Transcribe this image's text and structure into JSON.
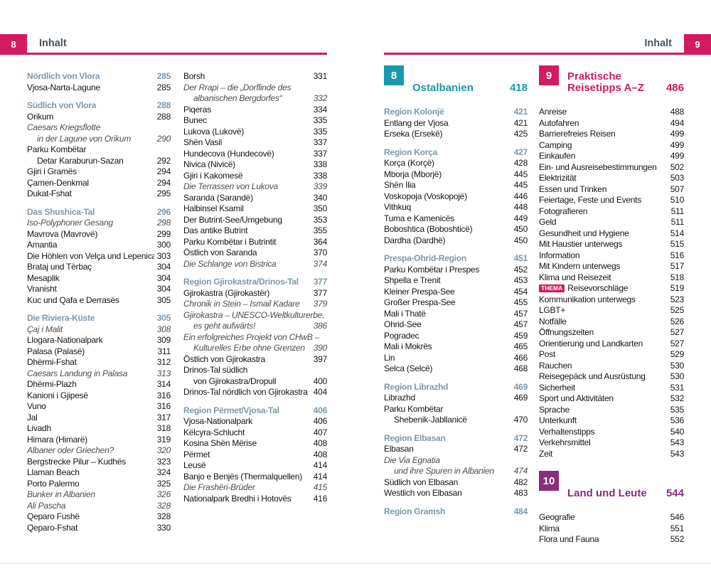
{
  "left_header": {
    "page_number": "8",
    "title": "Inhalt"
  },
  "right_header": {
    "page_number": "9",
    "title": "Inhalt"
  },
  "colors": {
    "accent_pink": "#d31a63",
    "accent_teal": "#189aab",
    "accent_purple": "#8b2d7a",
    "section_heading_slate": "#7d98a9"
  },
  "columns": [
    {
      "blocks": [
        {
          "type": "entries",
          "items": [
            {
              "s": "h",
              "t": "Nördlich von Vlora",
              "p": "285"
            },
            {
              "s": "n",
              "t": "Vjosa-Narta-Lagune",
              "p": "285"
            },
            {
              "s": "sp"
            },
            {
              "s": "h",
              "t": "Südlich von Vlora",
              "p": "288"
            },
            {
              "s": "n",
              "t": "Orikum",
              "p": "288"
            },
            {
              "s": "i",
              "t": "Caesars Kriegsflotte",
              "p": ""
            },
            {
              "s": "ii",
              "t": "in der Lagune von Orikum",
              "p": "290"
            },
            {
              "s": "n",
              "t": "Parku Kombëtar",
              "p": ""
            },
            {
              "s": "ni",
              "t": "Detar Karaburun-Sazan",
              "p": "292"
            },
            {
              "s": "n",
              "t": "Gjiri i Gramës",
              "p": "294"
            },
            {
              "s": "n",
              "t": "Çamen-Denkmal",
              "p": "294"
            },
            {
              "s": "n",
              "t": "Dukat-Fshat",
              "p": "295"
            },
            {
              "s": "sp"
            },
            {
              "s": "h",
              "t": "Das Shushica-Tal",
              "p": "296"
            },
            {
              "s": "i",
              "t": "Iso-Polyphoner Gesang",
              "p": "298"
            },
            {
              "s": "n",
              "t": "Mavrova (Mavrovë)",
              "p": "299"
            },
            {
              "s": "n",
              "t": "Amantia",
              "p": "300"
            },
            {
              "s": "n",
              "t": "Die Höhlen von Velça und Lepenica",
              "p": "303"
            },
            {
              "s": "n",
              "t": "Brataj und Tërbaç",
              "p": "304"
            },
            {
              "s": "n",
              "t": "Mesaplik",
              "p": "304"
            },
            {
              "s": "n",
              "t": "Vranisht",
              "p": "304"
            },
            {
              "s": "n",
              "t": "Kuc und Qafa e Derrasës",
              "p": "305"
            },
            {
              "s": "sp"
            },
            {
              "s": "h",
              "t": "Die Riviera-Küste",
              "p": "305"
            },
            {
              "s": "i",
              "t": "Çaj i Malit",
              "p": "308"
            },
            {
              "s": "n",
              "t": "Llogara-Nationalpark",
              "p": "309"
            },
            {
              "s": "n",
              "t": "Palasa (Palasë)",
              "p": "311"
            },
            {
              "s": "n",
              "t": "Dhërmi-Fshat",
              "p": "312"
            },
            {
              "s": "i",
              "t": "Caesars Landung in Palasa",
              "p": "313"
            },
            {
              "s": "n",
              "t": "Dhërmi-Plazh",
              "p": "314"
            },
            {
              "s": "n",
              "t": "Kanioni i Gjipesë",
              "p": "316"
            },
            {
              "s": "n",
              "t": "Vuno",
              "p": "316"
            },
            {
              "s": "n",
              "t": "Jal",
              "p": "317"
            },
            {
              "s": "n",
              "t": "Livadh",
              "p": "318"
            },
            {
              "s": "n",
              "t": "Himara (Himarë)",
              "p": "319"
            },
            {
              "s": "i",
              "t": "Albaner oder Griechen?",
              "p": "320"
            },
            {
              "s": "n",
              "t": "Bergstrecke Pilur – Kudhës",
              "p": "323"
            },
            {
              "s": "n",
              "t": "Llaman Beach",
              "p": "324"
            },
            {
              "s": "n",
              "t": "Porto Palermo",
              "p": "325"
            },
            {
              "s": "i",
              "t": "Bunker in Albanien",
              "p": "326"
            },
            {
              "s": "i",
              "t": "Ali Pascha",
              "p": "328"
            },
            {
              "s": "n",
              "t": "Qeparo Fushë",
              "p": "328"
            },
            {
              "s": "n",
              "t": "Qeparo-Fshat",
              "p": "330"
            }
          ]
        }
      ]
    },
    {
      "blocks": [
        {
          "type": "entries",
          "items": [
            {
              "s": "n",
              "t": "Borsh",
              "p": "331"
            },
            {
              "s": "i",
              "t": "Der Rrapi – die „Dorflinde des",
              "p": ""
            },
            {
              "s": "ii",
              "t": "albanischen Bergdorfes“",
              "p": "332"
            },
            {
              "s": "n",
              "t": "Piqeras",
              "p": "334"
            },
            {
              "s": "n",
              "t": "Bunec",
              "p": "335"
            },
            {
              "s": "n",
              "t": "Lukova (Lukovë)",
              "p": "335"
            },
            {
              "s": "n",
              "t": "Shën Vasil",
              "p": "337"
            },
            {
              "s": "n",
              "t": "Hundecova (Hundecovë)",
              "p": "337"
            },
            {
              "s": "n",
              "t": "Nivica (Nivicë)",
              "p": "338"
            },
            {
              "s": "n",
              "t": "Gjiri i Kakomesë",
              "p": "338"
            },
            {
              "s": "i",
              "t": "Die Terrassen von Lukova",
              "p": "339"
            },
            {
              "s": "n",
              "t": "Saranda (Sarandë)",
              "p": "340"
            },
            {
              "s": "n",
              "t": "Halbinsel Ksamil",
              "p": "350"
            },
            {
              "s": "n",
              "t": "Der Butrint-See/Umgebung",
              "p": "353"
            },
            {
              "s": "n",
              "t": "Das antike Butrint",
              "p": "355"
            },
            {
              "s": "n",
              "t": "Parku Kombëtar i Butrintit",
              "p": "364"
            },
            {
              "s": "n",
              "t": "Östlich von Saranda",
              "p": "370"
            },
            {
              "s": "i",
              "t": "Die Schlange von Bistrica",
              "p": "374"
            },
            {
              "s": "sp"
            },
            {
              "s": "h",
              "t": "Region Gjirokastra/Drinos-Tal",
              "p": "377"
            },
            {
              "s": "n",
              "t": "Gjirokastra (Gjirokastër)",
              "p": "377"
            },
            {
              "s": "i",
              "t": "Chronik in Stein – Ismail Kadare",
              "p": "379"
            },
            {
              "s": "i",
              "t": "Gjirokastra – UNESCO-Weltkulturerbe,",
              "p": ""
            },
            {
              "s": "ii",
              "t": "es geht aufwärts!",
              "p": "386"
            },
            {
              "s": "i",
              "t": "Ein erfolgreiches Projekt von CHwB –",
              "p": ""
            },
            {
              "s": "ii",
              "t": "Kulturelles Erbe ohne Grenzen",
              "p": "390"
            },
            {
              "s": "n",
              "t": "Östlich von Gjirokastra",
              "p": "397"
            },
            {
              "s": "n",
              "t": "Drinos-Tal südlich",
              "p": ""
            },
            {
              "s": "ni",
              "t": "von Gjirokastra/Dropull",
              "p": "400"
            },
            {
              "s": "n",
              "t": "Drinos-Tal nördlich von Gjirokastra",
              "p": "404"
            },
            {
              "s": "sp"
            },
            {
              "s": "h",
              "t": "Region Përmet/Vjosa-Tal",
              "p": "406"
            },
            {
              "s": "n",
              "t": "Vjosa-Nationalpark",
              "p": "406"
            },
            {
              "s": "n",
              "t": "Këlcyra-Schlucht",
              "p": "407"
            },
            {
              "s": "n",
              "t": "Kosina Shën Mërise",
              "p": "408"
            },
            {
              "s": "n",
              "t": "Përmet",
              "p": "408"
            },
            {
              "s": "n",
              "t": "Leusë",
              "p": "414"
            },
            {
              "s": "n",
              "t": "Banjo e Benjës (Thermalquellen)",
              "p": "414"
            },
            {
              "s": "i",
              "t": "Die Frashëri-Brüder",
              "p": "415"
            },
            {
              "s": "n",
              "t": "Nationalpark Bredhi i Hotovës",
              "p": "416"
            }
          ]
        }
      ]
    },
    {
      "blocks": [
        {
          "type": "chapter",
          "num": "8",
          "title_lines": [
            "Ostalbanien"
          ],
          "page": "418",
          "color": "teal"
        },
        {
          "type": "entries",
          "items": [
            {
              "s": "h",
              "t": "Region Kolonjë",
              "p": "421"
            },
            {
              "s": "n",
              "t": "Entlang der Vjosa",
              "p": "421"
            },
            {
              "s": "n",
              "t": "Erseka (Ersekë)",
              "p": "425"
            },
            {
              "s": "sp"
            },
            {
              "s": "h",
              "t": "Region Korça",
              "p": "427"
            },
            {
              "s": "n",
              "t": "Korça (Korçë)",
              "p": "428"
            },
            {
              "s": "n",
              "t": "Mborja (Mborjë)",
              "p": "445"
            },
            {
              "s": "n",
              "t": "Shën Ilia",
              "p": "445"
            },
            {
              "s": "n",
              "t": "Voskopoja (Voskopojë)",
              "p": "446"
            },
            {
              "s": "n",
              "t": "Vithkuq",
              "p": "448"
            },
            {
              "s": "n",
              "t": "Tuma e Kamenicës",
              "p": "449"
            },
            {
              "s": "n",
              "t": "Boboshtica (Boboshticë)",
              "p": "450"
            },
            {
              "s": "n",
              "t": "Dardha (Dardhë)",
              "p": "450"
            },
            {
              "s": "sp"
            },
            {
              "s": "h",
              "t": "Prespa-Ohrid-Region",
              "p": "451"
            },
            {
              "s": "n",
              "t": "Parku Kombëtar i Prespes",
              "p": "452"
            },
            {
              "s": "n",
              "t": "Shpella e Trenit",
              "p": "453"
            },
            {
              "s": "n",
              "t": "Kleiner Prespa-See",
              "p": "454"
            },
            {
              "s": "n",
              "t": "Großer Prespa-See",
              "p": "455"
            },
            {
              "s": "n",
              "t": "Mali i Thatë",
              "p": "457"
            },
            {
              "s": "n",
              "t": "Ohrid-See",
              "p": "457"
            },
            {
              "s": "n",
              "t": "Pogradec",
              "p": "459"
            },
            {
              "s": "n",
              "t": "Mali i Mokrës",
              "p": "465"
            },
            {
              "s": "n",
              "t": "Lin",
              "p": "466"
            },
            {
              "s": "n",
              "t": "Selca (Selcë)",
              "p": "468"
            },
            {
              "s": "sp"
            },
            {
              "s": "h",
              "t": "Region Librazhd",
              "p": "469"
            },
            {
              "s": "n",
              "t": "Librazhd",
              "p": "469"
            },
            {
              "s": "n",
              "t": "Parku Kombëtar",
              "p": ""
            },
            {
              "s": "ni",
              "t": "Shebenik-Jabllanicë",
              "p": "470"
            },
            {
              "s": "sp"
            },
            {
              "s": "h",
              "t": "Region Elbasan",
              "p": "472"
            },
            {
              "s": "n",
              "t": "Elbasan",
              "p": "472"
            },
            {
              "s": "i",
              "t": "Die Via Egnatia",
              "p": ""
            },
            {
              "s": "ii",
              "t": "und ihre Spuren in Albanien",
              "p": "474"
            },
            {
              "s": "n",
              "t": "Südlich von Elbasan",
              "p": "482"
            },
            {
              "s": "n",
              "t": "Westlich von Elbasan",
              "p": "483"
            },
            {
              "s": "sp"
            },
            {
              "s": "h",
              "t": "Region Gramsh",
              "p": "484"
            }
          ]
        }
      ]
    },
    {
      "blocks": [
        {
          "type": "chapter",
          "num": "9",
          "title_lines": [
            "Praktische",
            "Reisetipps A–Z"
          ],
          "page": "486",
          "color": "pink"
        },
        {
          "type": "entries",
          "items": [
            {
              "s": "n",
              "t": "Anreise",
              "p": "488"
            },
            {
              "s": "n",
              "t": "Autofahren",
              "p": "494"
            },
            {
              "s": "n",
              "t": "Barrierefreies Reisen",
              "p": "499"
            },
            {
              "s": "n",
              "t": "Camping",
              "p": "499"
            },
            {
              "s": "n",
              "t": "Einkaufen",
              "p": "499"
            },
            {
              "s": "n",
              "t": "Ein- und Ausreisebestimmungen",
              "p": "502"
            },
            {
              "s": "n",
              "t": "Elektrizität",
              "p": "503"
            },
            {
              "s": "n",
              "t": "Essen und Trinken",
              "p": "507"
            },
            {
              "s": "n",
              "t": "Feiertage, Feste und Events",
              "p": "510"
            },
            {
              "s": "n",
              "t": "Fotografieren",
              "p": "511"
            },
            {
              "s": "n",
              "t": "Geld",
              "p": "511"
            },
            {
              "s": "n",
              "t": "Gesundheit und Hygiene",
              "p": "514"
            },
            {
              "s": "n",
              "t": "Mit Haustier unterwegs",
              "p": "515"
            },
            {
              "s": "n",
              "t": "Information",
              "p": "516"
            },
            {
              "s": "n",
              "t": "Mit Kindern unterwegs",
              "p": "517"
            },
            {
              "s": "n",
              "t": "Klima und Reisezeit",
              "p": "518"
            },
            {
              "s": "n",
              "t": "Reisevorschläge",
              "p": "519",
              "badge": "THEMA"
            },
            {
              "s": "n",
              "t": "Kommunikation unterwegs",
              "p": "523"
            },
            {
              "s": "n",
              "t": "LGBT+",
              "p": "525"
            },
            {
              "s": "n",
              "t": "Notfälle",
              "p": "526"
            },
            {
              "s": "n",
              "t": "Öffnungszeiten",
              "p": "527"
            },
            {
              "s": "n",
              "t": "Orientierung und Landkarten",
              "p": "527"
            },
            {
              "s": "n",
              "t": "Post",
              "p": "529"
            },
            {
              "s": "n",
              "t": "Rauchen",
              "p": "530"
            },
            {
              "s": "n",
              "t": "Reisegepäck und Ausrüstung",
              "p": "530"
            },
            {
              "s": "n",
              "t": "Sicherheit",
              "p": "531"
            },
            {
              "s": "n",
              "t": "Sport und Aktivitäten",
              "p": "532"
            },
            {
              "s": "n",
              "t": "Sprache",
              "p": "535"
            },
            {
              "s": "n",
              "t": "Unterkunft",
              "p": "536"
            },
            {
              "s": "n",
              "t": "Verhaltenstipps",
              "p": "540"
            },
            {
              "s": "n",
              "t": "Verkehrsmittel",
              "p": "543"
            },
            {
              "s": "n",
              "t": "Zeit",
              "p": "543"
            }
          ]
        },
        {
          "type": "chapter",
          "num": "10",
          "title_lines": [
            "Land und Leute"
          ],
          "page": "544",
          "color": "purple"
        },
        {
          "type": "entries",
          "items": [
            {
              "s": "n",
              "t": "Geografie",
              "p": "546"
            },
            {
              "s": "n",
              "t": "Klima",
              "p": "551"
            },
            {
              "s": "n",
              "t": "Flora und Fauna",
              "p": "552"
            }
          ]
        }
      ]
    }
  ]
}
